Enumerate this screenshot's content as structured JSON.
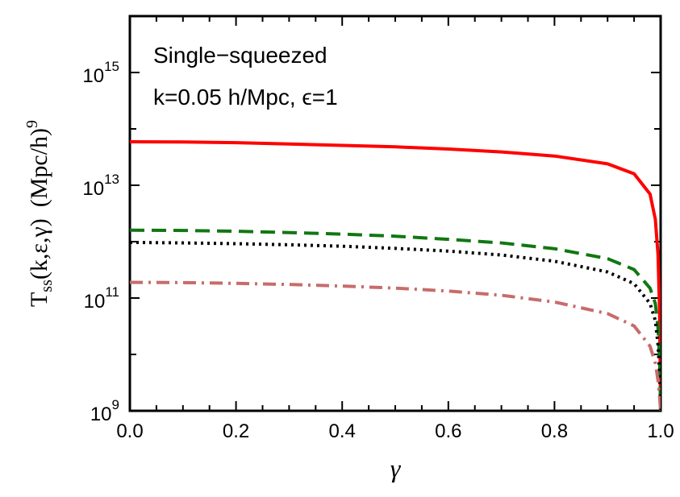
{
  "chart_data": {
    "type": "line",
    "x_scale": "linear",
    "y_scale": "log",
    "xlim": [
      0,
      1
    ],
    "ylim": [
      1000000000.0,
      1e+16
    ],
    "x_ticks": [
      0.0,
      0.2,
      0.4,
      0.6,
      0.8,
      1.0
    ],
    "x_tick_labels": [
      "0.0",
      "0.2",
      "0.4",
      "0.6",
      "0.8",
      "1.0"
    ],
    "y_ticks": [
      {
        "value": 1000000000.0,
        "base": "10",
        "exp": "9"
      },
      {
        "value": 100000000000.0,
        "base": "10",
        "exp": "11"
      },
      {
        "value": 10000000000000.0,
        "base": "10",
        "exp": "13"
      },
      {
        "value": 1000000000000000.0,
        "base": "10",
        "exp": "15"
      }
    ],
    "xlabel": "γ",
    "ylabel": {
      "T": "T",
      "sub": "ss",
      "args": "(k,ε,γ)",
      "units": "(Mpc/h)",
      "units_exp": "9"
    },
    "annotation": {
      "line1": "Single−squeezed",
      "line2": "k=0.05 h/Mpc, ϵ=1"
    },
    "grid": false,
    "legend": "none",
    "series": [
      {
        "color": "#ff0000",
        "dash": "solid",
        "points": [
          [
            0,
            59000000000000.0
          ],
          [
            0.1,
            58500000000000.0
          ],
          [
            0.2,
            57000000000000.0
          ],
          [
            0.3,
            54000000000000.0
          ],
          [
            0.4,
            51000000000000.0
          ],
          [
            0.5,
            48000000000000.0
          ],
          [
            0.6,
            44000000000000.0
          ],
          [
            0.7,
            39000000000000.0
          ],
          [
            0.8,
            33000000000000.0
          ],
          [
            0.9,
            24000000000000.0
          ],
          [
            0.95,
            16000000000000.0
          ],
          [
            0.98,
            7000000000000.0
          ],
          [
            0.99,
            2500000000000.0
          ],
          [
            0.995,
            600000000000.0
          ],
          [
            0.998,
            60000000000.0
          ],
          [
            1.0,
            1000000000.0
          ]
        ]
      },
      {
        "color": "#117711",
        "dash": "dashed",
        "points": [
          [
            0,
            1600000000000.0
          ],
          [
            0.1,
            1580000000000.0
          ],
          [
            0.2,
            1530000000000.0
          ],
          [
            0.3,
            1450000000000.0
          ],
          [
            0.4,
            1360000000000.0
          ],
          [
            0.5,
            1250000000000.0
          ],
          [
            0.6,
            1100000000000.0
          ],
          [
            0.7,
            950000000000.0
          ],
          [
            0.8,
            750000000000.0
          ],
          [
            0.9,
            500000000000.0
          ],
          [
            0.95,
            320000000000.0
          ],
          [
            0.98,
            150000000000.0
          ],
          [
            0.99,
            80000000000.0
          ],
          [
            0.995,
            30000000000.0
          ],
          [
            0.998,
            8000000000.0
          ],
          [
            1.0,
            1000000000.0
          ]
        ]
      },
      {
        "color": "#000000",
        "dash": "dotted",
        "points": [
          [
            0,
            970000000000.0
          ],
          [
            0.1,
            950000000000.0
          ],
          [
            0.2,
            920000000000.0
          ],
          [
            0.3,
            880000000000.0
          ],
          [
            0.4,
            830000000000.0
          ],
          [
            0.5,
            760000000000.0
          ],
          [
            0.6,
            680000000000.0
          ],
          [
            0.7,
            580000000000.0
          ],
          [
            0.8,
            450000000000.0
          ],
          [
            0.9,
            290000000000.0
          ],
          [
            0.95,
            180000000000.0
          ],
          [
            0.98,
            80000000000.0
          ],
          [
            0.99,
            40000000000.0
          ],
          [
            0.995,
            15000000000.0
          ],
          [
            0.998,
            5000000000.0
          ],
          [
            1.0,
            1000000000.0
          ]
        ]
      },
      {
        "color": "#c96b6b",
        "dash": "dashdot",
        "points": [
          [
            0,
            190000000000.0
          ],
          [
            0.1,
            188000000000.0
          ],
          [
            0.2,
            182000000000.0
          ],
          [
            0.3,
            174000000000.0
          ],
          [
            0.4,
            163000000000.0
          ],
          [
            0.5,
            150000000000.0
          ],
          [
            0.6,
            133000000000.0
          ],
          [
            0.7,
            112000000000.0
          ],
          [
            0.8,
            85000000000.0
          ],
          [
            0.9,
            53000000000.0
          ],
          [
            0.95,
            32000000000.0
          ],
          [
            0.98,
            14000000000.0
          ],
          [
            0.99,
            7000000000.0
          ],
          [
            0.995,
            3500000000.0
          ],
          [
            0.998,
            1800000000.0
          ],
          [
            1.0,
            1000000000.0
          ]
        ]
      }
    ]
  }
}
